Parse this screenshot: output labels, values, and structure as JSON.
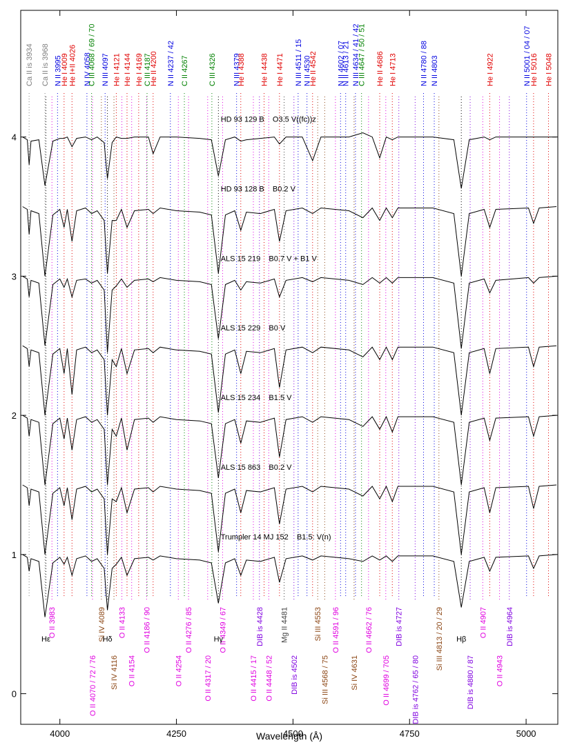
{
  "chart_data": {
    "type": "line",
    "xlabel": "Wavelength (Å)",
    "xlim": [
      3916,
      5068
    ],
    "ylim": [
      -0.22,
      4.91
    ],
    "xticks": [
      4000,
      4250,
      4500,
      4750,
      5000
    ],
    "yticks": [
      0,
      1,
      2,
      3,
      4
    ],
    "x": [
      3920,
      3930,
      3934,
      3938,
      3955,
      3968,
      3985,
      4000,
      4009,
      4016,
      4026,
      4036,
      4055,
      4068,
      4080,
      4095,
      4102,
      4112,
      4121,
      4132,
      4144,
      4160,
      4190,
      4200,
      4215,
      4250,
      4300,
      4325,
      4340,
      4355,
      4375,
      4388,
      4400,
      4430,
      4460,
      4471,
      4485,
      4520,
      4542,
      4560,
      4620,
      4650,
      4670,
      4686,
      4700,
      4713,
      4725,
      4800,
      4845,
      4861,
      4878,
      4910,
      4922,
      4935,
      5005,
      5016,
      5028,
      5065
    ],
    "series": [
      {
        "name": "HD 93 129 B    O3.5 V((fc))z",
        "color": "#000000",
        "values": [
          4.0,
          3.98,
          3.8,
          3.97,
          3.98,
          3.65,
          3.97,
          3.99,
          3.99,
          4.0,
          3.93,
          3.99,
          4.0,
          3.98,
          4.0,
          3.96,
          3.7,
          3.96,
          4.0,
          3.99,
          3.99,
          4.0,
          4.0,
          3.88,
          4.0,
          4.0,
          3.99,
          3.98,
          3.72,
          3.98,
          4.0,
          3.97,
          3.98,
          3.99,
          4.0,
          3.95,
          4.0,
          4.0,
          3.83,
          4.0,
          4.0,
          4.03,
          4.0,
          3.85,
          4.0,
          3.98,
          4.0,
          4.0,
          3.98,
          3.63,
          3.98,
          4.0,
          3.98,
          4.0,
          4.0,
          4.0,
          4.0,
          4.0
        ]
      },
      {
        "name": "HD 93 128 B    B0.2 V",
        "color": "#000000",
        "values": [
          3.5,
          3.48,
          3.3,
          3.47,
          3.45,
          3.0,
          3.44,
          3.48,
          3.35,
          3.48,
          3.25,
          3.47,
          3.49,
          3.45,
          3.47,
          3.4,
          3.02,
          3.4,
          3.4,
          3.48,
          3.35,
          3.47,
          3.48,
          3.45,
          3.49,
          3.47,
          3.46,
          3.44,
          3.02,
          3.44,
          3.47,
          3.33,
          3.46,
          3.45,
          3.48,
          3.25,
          3.47,
          3.49,
          3.45,
          3.49,
          3.47,
          3.42,
          3.49,
          3.4,
          3.49,
          3.42,
          3.49,
          3.49,
          3.45,
          3.0,
          3.45,
          3.48,
          3.35,
          3.48,
          3.49,
          3.38,
          3.49,
          3.5
        ]
      },
      {
        "name": "ALS 15 219    B0.7 V + B1 V",
        "color": "#000000",
        "values": [
          3.0,
          2.98,
          2.85,
          2.97,
          2.95,
          2.5,
          2.94,
          2.98,
          2.92,
          2.98,
          2.85,
          2.97,
          2.98,
          2.95,
          2.97,
          2.9,
          2.45,
          2.9,
          2.93,
          2.98,
          2.92,
          2.97,
          2.98,
          2.96,
          2.99,
          2.97,
          2.96,
          2.94,
          2.55,
          2.94,
          2.97,
          2.9,
          2.96,
          2.95,
          2.98,
          2.85,
          2.97,
          2.99,
          2.96,
          2.99,
          2.97,
          2.94,
          2.99,
          2.95,
          2.99,
          2.95,
          2.99,
          2.99,
          2.95,
          2.48,
          2.95,
          2.98,
          2.88,
          2.97,
          2.99,
          2.95,
          2.99,
          3.0
        ]
      },
      {
        "name": "ALS 15 229    B0 V",
        "color": "#000000",
        "values": [
          2.5,
          2.48,
          2.35,
          2.47,
          2.45,
          2.0,
          2.44,
          2.48,
          2.3,
          2.48,
          2.15,
          2.47,
          2.49,
          2.45,
          2.47,
          2.4,
          2.0,
          2.4,
          2.35,
          2.48,
          2.3,
          2.47,
          2.48,
          2.45,
          2.49,
          2.47,
          2.46,
          2.44,
          2.02,
          2.44,
          2.47,
          2.3,
          2.46,
          2.45,
          2.48,
          2.2,
          2.47,
          2.49,
          2.45,
          2.49,
          2.47,
          2.42,
          2.49,
          2.4,
          2.49,
          2.4,
          2.49,
          2.49,
          2.45,
          2.0,
          2.45,
          2.48,
          2.3,
          2.48,
          2.49,
          2.35,
          2.49,
          2.5
        ]
      },
      {
        "name": "ALS 15 234    B1.5 V",
        "color": "#000000",
        "values": [
          2.0,
          1.98,
          1.85,
          1.97,
          1.95,
          1.5,
          1.94,
          1.98,
          1.83,
          1.98,
          1.75,
          1.97,
          1.99,
          1.95,
          1.97,
          1.9,
          1.5,
          1.9,
          1.85,
          1.98,
          1.75,
          1.97,
          1.98,
          1.95,
          1.99,
          1.97,
          1.96,
          1.94,
          1.55,
          1.94,
          1.97,
          1.8,
          1.96,
          1.95,
          1.98,
          1.7,
          1.97,
          1.99,
          1.95,
          1.99,
          1.97,
          1.92,
          1.99,
          1.9,
          1.99,
          1.88,
          1.99,
          1.99,
          1.95,
          1.5,
          1.95,
          1.98,
          1.82,
          1.98,
          1.99,
          1.85,
          1.99,
          2.0
        ]
      },
      {
        "name": "ALS 15 863    B0.2 V",
        "color": "#000000",
        "values": [
          1.5,
          1.48,
          1.35,
          1.47,
          1.45,
          1.0,
          1.44,
          1.48,
          1.35,
          1.48,
          1.25,
          1.47,
          1.49,
          1.45,
          1.47,
          1.4,
          1.0,
          1.4,
          1.38,
          1.48,
          1.3,
          1.47,
          1.48,
          1.45,
          1.49,
          1.47,
          1.46,
          1.44,
          1.02,
          1.44,
          1.47,
          1.3,
          1.46,
          1.45,
          1.48,
          1.22,
          1.47,
          1.49,
          1.45,
          1.49,
          1.47,
          1.42,
          1.49,
          1.4,
          1.49,
          1.38,
          1.49,
          1.49,
          1.45,
          1.0,
          1.45,
          1.48,
          1.3,
          1.48,
          1.49,
          1.33,
          1.49,
          1.5
        ]
      },
      {
        "name": "Trumpler 14 MJ 152    B1.5: V(n)",
        "color": "#000000",
        "values": [
          1.0,
          0.98,
          0.88,
          0.97,
          0.95,
          0.55,
          0.94,
          0.98,
          0.93,
          0.98,
          0.85,
          0.97,
          0.99,
          0.95,
          0.97,
          0.9,
          0.6,
          0.9,
          0.93,
          0.98,
          0.85,
          0.97,
          0.98,
          0.96,
          0.99,
          0.97,
          0.96,
          0.94,
          0.65,
          0.94,
          0.97,
          0.85,
          0.96,
          0.95,
          0.98,
          0.8,
          0.97,
          0.99,
          0.96,
          0.99,
          0.97,
          0.95,
          0.99,
          0.96,
          0.99,
          0.95,
          0.99,
          0.99,
          0.95,
          0.62,
          0.95,
          0.98,
          0.88,
          0.98,
          0.99,
          0.9,
          0.99,
          1.0
        ]
      }
    ],
    "top_lines": [
      {
        "label": "Ca II is 3934",
        "x": 3934,
        "color": "#808080"
      },
      {
        "label": "Ca II is 3968",
        "x": 3968,
        "color": "#808080"
      },
      {
        "label": "N II 3995",
        "x": 3995,
        "color": "#0000e0"
      },
      {
        "label": "He I 4009",
        "x": 4009,
        "color": "#e00000"
      },
      {
        "label": "He I+II 4026",
        "x": 4026,
        "color": "#e00000"
      },
      {
        "label": "N IV 4058",
        "x": 4058,
        "color": "#0000e0"
      },
      {
        "label": "C III 4068 / 69 / 70",
        "x": 4068,
        "color": "#008000"
      },
      {
        "label": "N III 4097",
        "x": 4097,
        "color": "#0000e0"
      },
      {
        "label": "He I 4121",
        "x": 4121,
        "color": "#e00000"
      },
      {
        "label": "He I 4144",
        "x": 4144,
        "color": "#e00000"
      },
      {
        "label": "He I 4169",
        "x": 4169,
        "color": "#e00000"
      },
      {
        "label": "C III 4187",
        "x": 4187,
        "color": "#008000"
      },
      {
        "label": "He II 4200",
        "x": 4200,
        "color": "#e00000"
      },
      {
        "label": "N II 4237 / 42",
        "x": 4237,
        "color": "#0000e0"
      },
      {
        "label": "C II 4267",
        "x": 4267,
        "color": "#008000"
      },
      {
        "label": "C III 4326",
        "x": 4326,
        "color": "#008000"
      },
      {
        "label": "N III 4379",
        "x": 4379,
        "color": "#0000e0"
      },
      {
        "label": "He I 4388",
        "x": 4388,
        "color": "#e00000"
      },
      {
        "label": "He I 4438",
        "x": 4438,
        "color": "#e00000"
      },
      {
        "label": "He I 4471",
        "x": 4471,
        "color": "#e00000"
      },
      {
        "label": "N III 4511 / 15",
        "x": 4511,
        "color": "#0000e0"
      },
      {
        "label": "N II 4530",
        "x": 4530,
        "color": "#0000e0"
      },
      {
        "label": "He II 4542",
        "x": 4542,
        "color": "#e00000"
      },
      {
        "label": "N II 4602 / 07",
        "x": 4602,
        "color": "#0000e0"
      },
      {
        "label": "N II 4613 / 21",
        "x": 4613,
        "color": "#0000e0"
      },
      {
        "label": "N III 4634 / 41 / 42",
        "x": 4634,
        "color": "#0000e0"
      },
      {
        "label": "C III 4647 / 50 / 51",
        "x": 4647,
        "color": "#008000"
      },
      {
        "label": "He II 4686",
        "x": 4686,
        "color": "#e00000"
      },
      {
        "label": "He I 4713",
        "x": 4713,
        "color": "#e00000"
      },
      {
        "label": "N II 4780 / 88",
        "x": 4780,
        "color": "#0000e0"
      },
      {
        "label": "N II 4803",
        "x": 4803,
        "color": "#0000e0"
      },
      {
        "label": "He I 4922",
        "x": 4922,
        "color": "#e00000"
      },
      {
        "label": "N II 5001 / 04 / 07",
        "x": 5001,
        "color": "#0000e0"
      },
      {
        "label": "He I 5016",
        "x": 5016,
        "color": "#e00000"
      },
      {
        "label": "He I 5048",
        "x": 5048,
        "color": "#e00000"
      }
    ],
    "bottom_lines": [
      {
        "label": "O II 3983",
        "x": 3983,
        "color": "#e000e0"
      },
      {
        "label": "O II 4070 / 72 / 76",
        "x": 4070,
        "color": "#e000e0"
      },
      {
        "label": "Si IV 4089",
        "x": 4089,
        "color": "#8b4513"
      },
      {
        "label": "Si IV 4116",
        "x": 4116,
        "color": "#8b4513"
      },
      {
        "label": "O II 4133",
        "x": 4133,
        "color": "#e000e0"
      },
      {
        "label": "O II 4154",
        "x": 4154,
        "color": "#e000e0"
      },
      {
        "label": "O II 4186 / 90",
        "x": 4186,
        "color": "#e000e0"
      },
      {
        "label": "O II 4254",
        "x": 4254,
        "color": "#e000e0"
      },
      {
        "label": "O II 4276 / 85",
        "x": 4276,
        "color": "#e000e0"
      },
      {
        "label": "O II 4317 / 20",
        "x": 4317,
        "color": "#e000e0"
      },
      {
        "label": "O II 4349 / 67",
        "x": 4349,
        "color": "#e000e0"
      },
      {
        "label": "O II 4415 / 17",
        "x": 4415,
        "color": "#e000e0"
      },
      {
        "label": "DIB is 4428",
        "x": 4428,
        "color": "#8000e0"
      },
      {
        "label": "O II 4448 / 52",
        "x": 4448,
        "color": "#e000e0"
      },
      {
        "label": "Mg II 4481",
        "x": 4481,
        "color": "#404040"
      },
      {
        "label": "DIB is 4502",
        "x": 4502,
        "color": "#8000e0"
      },
      {
        "label": "Si III 4553",
        "x": 4553,
        "color": "#8b4513"
      },
      {
        "label": "Si III 4568 / 75",
        "x": 4568,
        "color": "#8b4513"
      },
      {
        "label": "O II 4591 / 96",
        "x": 4591,
        "color": "#e000e0"
      },
      {
        "label": "Si IV 4631",
        "x": 4631,
        "color": "#8b4513"
      },
      {
        "label": "O II 4662 / 76",
        "x": 4662,
        "color": "#e000e0"
      },
      {
        "label": "O II 4699 / 705",
        "x": 4699,
        "color": "#e000e0"
      },
      {
        "label": "DIB is 4727",
        "x": 4727,
        "color": "#8000e0"
      },
      {
        "label": "DIB is 4762 / 65 / 80",
        "x": 4762,
        "color": "#8000e0"
      },
      {
        "label": "Si III 4813 / 20 / 29",
        "x": 4813,
        "color": "#8b4513"
      },
      {
        "label": "DIB is 4880 / 87",
        "x": 4880,
        "color": "#8000e0"
      },
      {
        "label": "O II 4907",
        "x": 4907,
        "color": "#e000e0"
      },
      {
        "label": "O II 4943",
        "x": 4943,
        "color": "#e000e0"
      },
      {
        "label": "DIB is 4964",
        "x": 4964,
        "color": "#8000e0"
      }
    ],
    "balmer_lines": [
      {
        "label": "Hε",
        "x": 3970,
        "color": "#000000"
      },
      {
        "label": "Hδ",
        "x": 4102,
        "color": "#000000"
      },
      {
        "label": "Hγ",
        "x": 4340,
        "color": "#000000"
      },
      {
        "label": "Hβ",
        "x": 4861,
        "color": "#000000"
      }
    ]
  }
}
